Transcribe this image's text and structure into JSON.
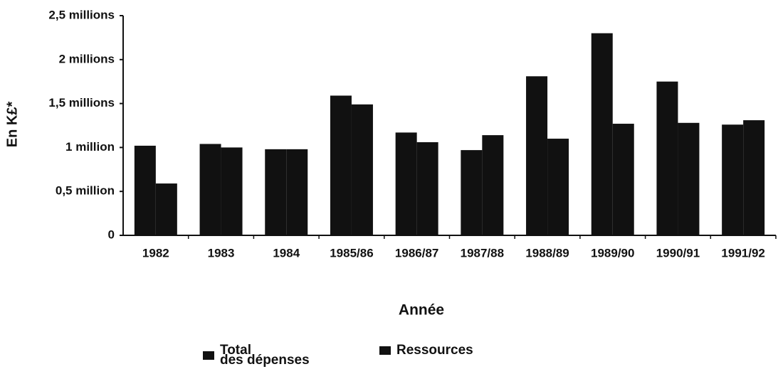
{
  "chart_data": {
    "type": "bar",
    "y_label": "En K£*",
    "x_label": "Année",
    "categories": [
      "1982",
      "1983",
      "1984",
      "1985/86",
      "1986/87",
      "1987/88",
      "1988/89",
      "1989/90",
      "1990/91",
      "1991/92"
    ],
    "series": [
      {
        "name": "Total\ndes dépenses",
        "color": "#111111",
        "values": [
          1020000,
          1040000,
          980000,
          1590000,
          1170000,
          970000,
          1810000,
          2300000,
          1750000,
          1260000
        ]
      },
      {
        "name": "Ressources",
        "color": "#111111",
        "values": [
          590000,
          1000000,
          980000,
          1490000,
          1060000,
          1140000,
          1100000,
          1270000,
          1280000,
          1310000
        ]
      }
    ],
    "ylim": [
      0,
      2500000
    ],
    "yticks": [
      0,
      {
        "value": 500000,
        "label": "0,5 million"
      },
      {
        "value": 1000000,
        "label": "1 million"
      },
      {
        "value": 1500000,
        "label": "1,5 millions"
      },
      {
        "value": 2000000,
        "label": "2 millions"
      },
      {
        "value": 2500000,
        "label": "2,5 millions"
      }
    ],
    "grid": false,
    "legend": "bottom"
  }
}
